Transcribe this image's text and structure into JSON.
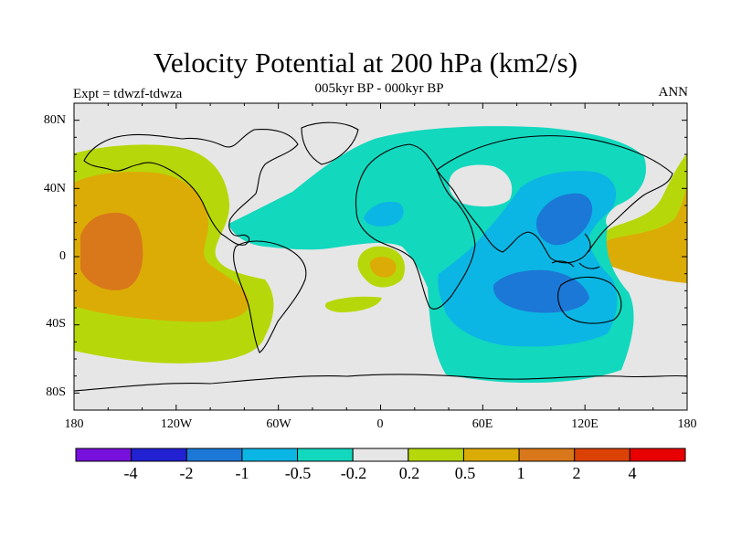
{
  "title": "Velocity Potential at 200 hPa (km2/s)",
  "subtitle": "005kyr BP - 000kyr BP",
  "experiment": "Expt = tdwzf-tdwza",
  "season": "ANN",
  "lat_labels": [
    "80N",
    "40N",
    "0",
    "40S",
    "80S"
  ],
  "lon_labels": [
    "180",
    "120W",
    "60W",
    "0",
    "60E",
    "120E",
    "180"
  ],
  "colorbar": {
    "labels": [
      "-4",
      "-2",
      "-1",
      "-0.5",
      "-0.2",
      "0.2",
      "0.5",
      "1",
      "2",
      "4"
    ],
    "colors": [
      "#7710dc",
      "#2222d2",
      "#1c78d6",
      "#0cb6e4",
      "#12d8be",
      "#e6e6e6",
      "#b6d80a",
      "#dcac06",
      "#d8781a",
      "#dc4206",
      "#e80000"
    ]
  },
  "field_colors": {
    "background": "#e6e6e6",
    "neg_weak": "#12d8be",
    "neg_mid": "#0cb6e4",
    "neg_strong": "#1c78d6",
    "pos_weak": "#b6d80a",
    "pos_mid": "#dcac06",
    "pos_strong": "#d8781a"
  }
}
